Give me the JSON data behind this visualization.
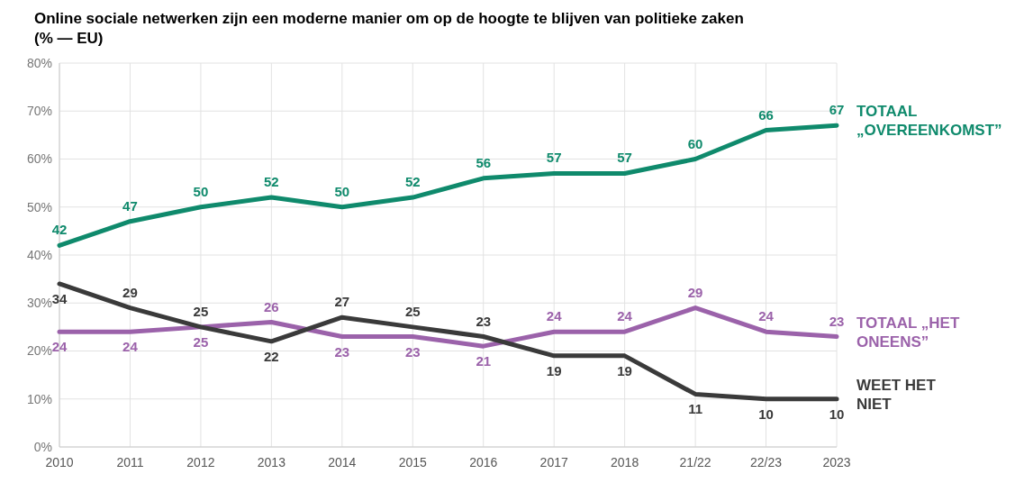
{
  "chart_data": {
    "type": "line",
    "title": "Online sociale netwerken zijn een moderne manier om op de hoogte te blijven van politieke zaken",
    "subtitle": "(% — EU)",
    "categories": [
      "2010",
      "2011",
      "2012",
      "2013",
      "2014",
      "2015",
      "2016",
      "2017",
      "2018",
      "21/22",
      "22/23",
      "2023"
    ],
    "series": [
      {
        "name": "TOTAAL „OVEREENKOMST”",
        "color": "#0f8a6c",
        "values": [
          42,
          47,
          50,
          52,
          50,
          52,
          56,
          57,
          57,
          60,
          66,
          67
        ]
      },
      {
        "name": "TOTAAL „HET ONEENS”",
        "color": "#9b62aa",
        "values": [
          24,
          24,
          25,
          26,
          23,
          23,
          21,
          24,
          24,
          29,
          24,
          23
        ]
      },
      {
        "name": "WEET HET NIET",
        "color": "#3a3a3a",
        "values": [
          34,
          29,
          25,
          22,
          27,
          25,
          23,
          19,
          19,
          11,
          10,
          10
        ]
      }
    ],
    "ylim": [
      0,
      80
    ],
    "yticks": [
      {
        "value": 0,
        "label": "0%"
      },
      {
        "value": 10,
        "label": "10%"
      },
      {
        "value": 20,
        "label": "20%"
      },
      {
        "value": 30,
        "label": "30%"
      },
      {
        "value": 40,
        "label": "40%"
      },
      {
        "value": 50,
        "label": "50%"
      },
      {
        "value": 60,
        "label": "60%"
      },
      {
        "value": 70,
        "label": "70%"
      },
      {
        "value": 80,
        "label": "80%"
      }
    ],
    "grid": true,
    "data_labels": true,
    "line_style": "solid"
  }
}
